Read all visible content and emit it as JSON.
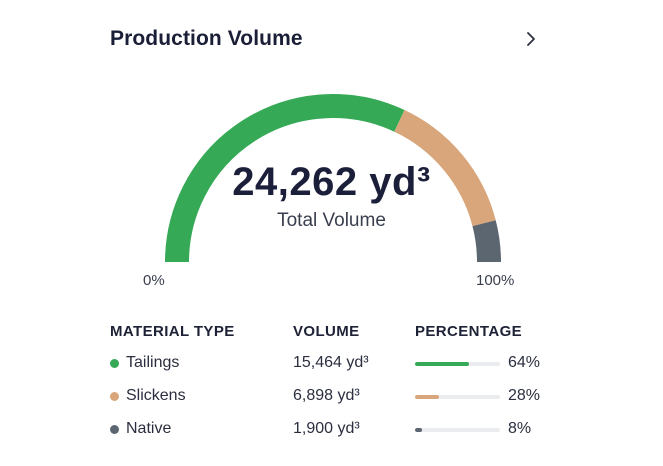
{
  "header": {
    "title": "Production Volume",
    "chevron_icon": "chevron-right-icon"
  },
  "gauge": {
    "total": "24,262 yd³",
    "total_label": "Total Volume",
    "min_label": "0%",
    "max_label": "100%",
    "segments": [
      {
        "name": "Tailings",
        "fraction": 0.64,
        "color": "#35a956"
      },
      {
        "name": "Slickens",
        "fraction": 0.28,
        "color": "#d8a67a"
      },
      {
        "name": "Native",
        "fraction": 0.08,
        "color": "#5c6670"
      }
    ],
    "track_color": "#ebecef"
  },
  "table": {
    "headers": {
      "material": "MATERIAL TYPE",
      "volume": "VOLUME",
      "percentage": "PERCENTAGE"
    },
    "rows": [
      {
        "name": "Tailings",
        "volume": "15,464 yd³",
        "percent": "64%",
        "fraction": 0.64,
        "color": "#35a956"
      },
      {
        "name": "Slickens",
        "volume": "6,898 yd³",
        "percent": "28%",
        "fraction": 0.28,
        "color": "#d8a67a"
      },
      {
        "name": "Native",
        "volume": "1,900 yd³",
        "percent": "8%",
        "fraction": 0.08,
        "color": "#5c6670"
      }
    ]
  }
}
